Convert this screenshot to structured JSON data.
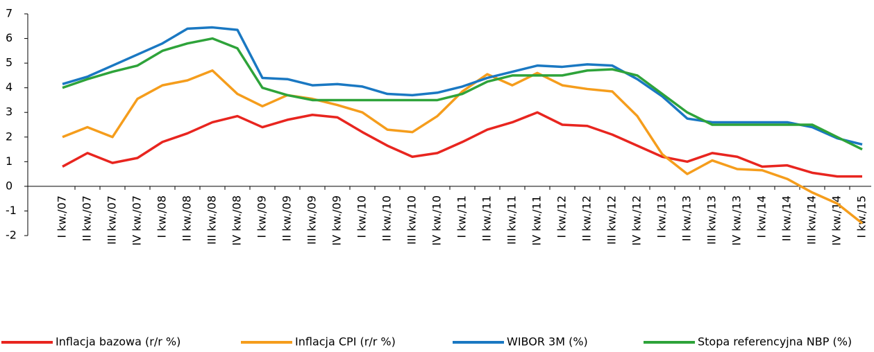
{
  "chart_data": {
    "type": "line",
    "categories": [
      "I kw./07",
      "II kw./07",
      "III kw./07",
      "IV kw./07",
      "I kw./08",
      "II kw./08",
      "III kw./08",
      "IV kw./08",
      "I kw./09",
      "II kw./09",
      "III kw./09",
      "IV kw./09",
      "I kw./10",
      "II kw./10",
      "III kw./10",
      "IV kw./10",
      "I kw./11",
      "II kw./11",
      "III kw./11",
      "IV kw./11",
      "I kw./12",
      "II kw./12",
      "III kw./12",
      "IV kw./12",
      "I kw./13",
      "II kw./13",
      "III kw./13",
      "IV kw./13",
      "I kw./14",
      "II kw./14",
      "III kw./14",
      "IV kw./14",
      "I kw./15"
    ],
    "series": [
      {
        "name": "Inflacja bazowa (r/r %)",
        "color": "#e8251f",
        "values": [
          0.8,
          1.35,
          0.95,
          1.15,
          1.8,
          2.15,
          2.6,
          2.85,
          2.4,
          2.7,
          2.9,
          2.8,
          2.2,
          1.65,
          1.2,
          1.35,
          1.8,
          2.3,
          2.6,
          3.0,
          2.5,
          2.45,
          2.1,
          1.65,
          1.2,
          1.0,
          1.35,
          1.2,
          0.8,
          0.85,
          0.55,
          0.4,
          0.4
        ]
      },
      {
        "name": "Inflacja CPI (r/r %)",
        "color": "#f59d1c",
        "values": [
          2.0,
          2.4,
          2.0,
          3.55,
          4.1,
          4.3,
          4.7,
          3.75,
          3.25,
          3.7,
          3.55,
          3.3,
          3.0,
          2.3,
          2.2,
          2.85,
          3.85,
          4.55,
          4.1,
          4.6,
          4.1,
          3.95,
          3.85,
          2.85,
          1.3,
          0.5,
          1.05,
          0.7,
          0.65,
          0.3,
          -0.25,
          -0.7,
          -1.5
        ]
      },
      {
        "name": "WIBOR 3M (%)",
        "color": "#1a78c2",
        "values": [
          4.15,
          4.45,
          4.9,
          5.35,
          5.8,
          6.4,
          6.45,
          6.35,
          4.4,
          4.35,
          4.1,
          4.15,
          4.05,
          3.75,
          3.7,
          3.8,
          4.05,
          4.4,
          4.65,
          4.9,
          4.85,
          4.95,
          4.9,
          4.35,
          3.65,
          2.75,
          2.6,
          2.6,
          2.6,
          2.6,
          2.4,
          1.95,
          1.7
        ]
      },
      {
        "name": "Stopa referencyjna NBP (%)",
        "color": "#2ea33a",
        "values": [
          4.0,
          4.35,
          4.65,
          4.9,
          5.5,
          5.8,
          6.0,
          5.6,
          4.0,
          3.7,
          3.5,
          3.5,
          3.5,
          3.5,
          3.5,
          3.5,
          3.75,
          4.25,
          4.5,
          4.5,
          4.5,
          4.7,
          4.75,
          4.5,
          3.75,
          3.0,
          2.5,
          2.5,
          2.5,
          2.5,
          2.5,
          2.0,
          1.5
        ]
      }
    ],
    "ylim": [
      -2,
      7
    ],
    "yticks": [
      -2,
      -1,
      0,
      1,
      2,
      3,
      4,
      5,
      6,
      7
    ],
    "grid": false,
    "legend": "bottom"
  }
}
